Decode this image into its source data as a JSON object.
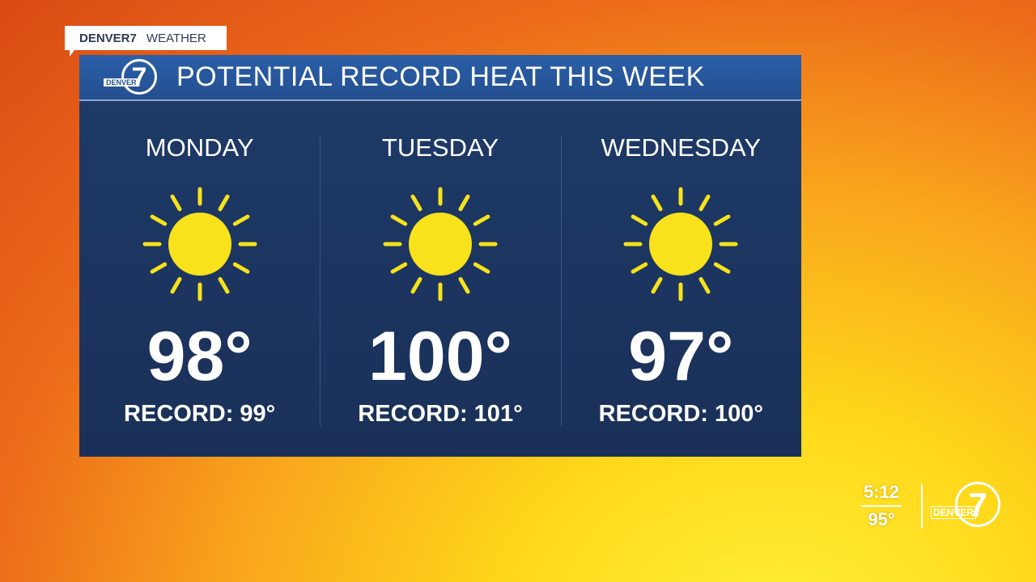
{
  "tag": {
    "brand": "DENVER7",
    "section": "WEATHER"
  },
  "panel": {
    "logo_text": "DENVER",
    "logo_number": "7",
    "title": "POTENTIAL RECORD HEAT THIS WEEK"
  },
  "days": [
    {
      "day": "MONDAY",
      "icon": "sun-icon",
      "temp": "98°",
      "record": "RECORD: 99°"
    },
    {
      "day": "TUESDAY",
      "icon": "sun-icon",
      "temp": "100°",
      "record": "RECORD: 101°"
    },
    {
      "day": "WEDNESDAY",
      "icon": "sun-icon",
      "temp": "97°",
      "record": "RECORD: 100°"
    }
  ],
  "bug": {
    "time": "5:12",
    "temp": "95°",
    "logo_text": "DENVER",
    "logo_number": "7"
  },
  "colors": {
    "panel": "#1c3561",
    "header": "#2a5fa8",
    "sun": "#f7e21b"
  }
}
